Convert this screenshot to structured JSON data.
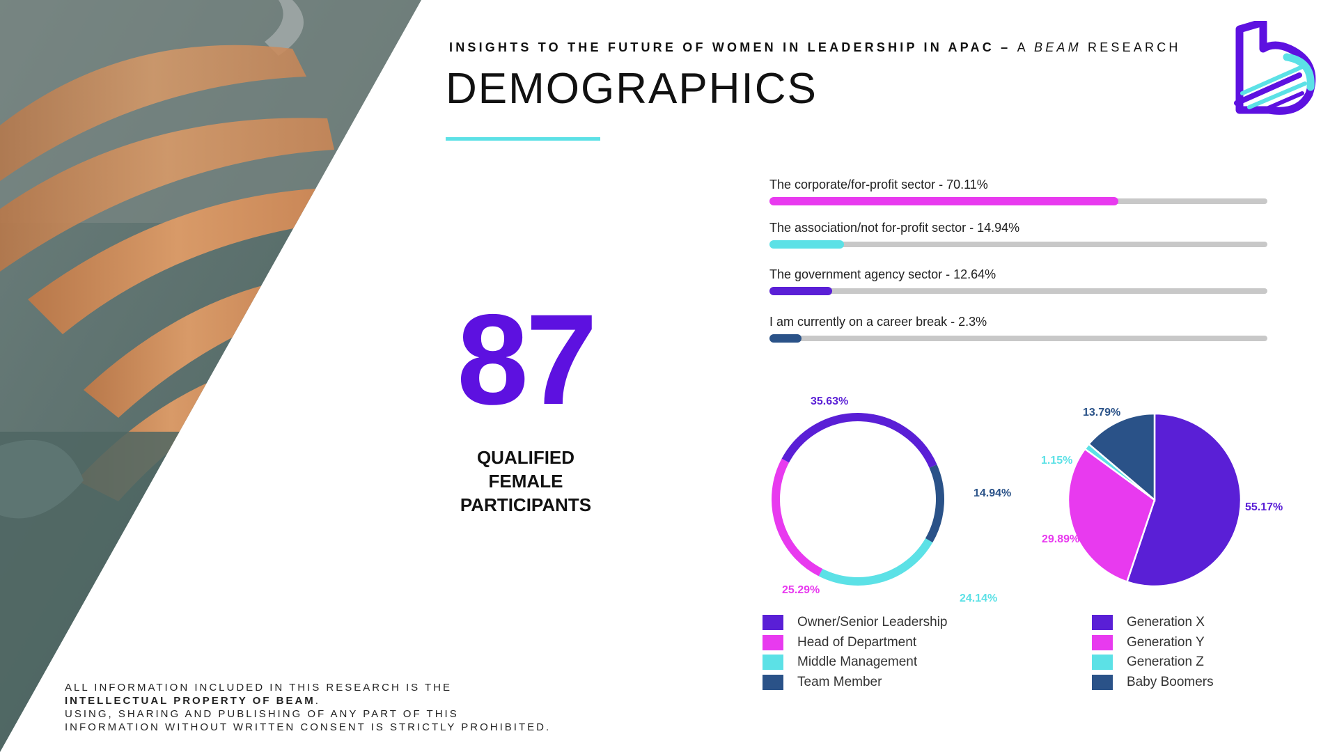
{
  "header": {
    "subtitle_main": "INSIGHTS TO THE FUTURE OF WOMEN IN LEADERSHIP IN APAC –",
    "subtitle_a": "A",
    "subtitle_beam": "BEAM",
    "subtitle_research": "RESEARCH",
    "title": "DEMOGRAPHICS"
  },
  "hero": {
    "number": "87",
    "line1": "QUALIFIED",
    "line2": "FEMALE",
    "line3": "PARTICIPANTS"
  },
  "colors": {
    "purple": "#5d11e0",
    "violet": "#5a1fd6",
    "magenta": "#e83aef",
    "cyan": "#5ce1e6",
    "navy": "#2a5288",
    "accent_line": "#5ce1e6",
    "track": "#c8c8c8"
  },
  "chart_data": [
    {
      "type": "bar",
      "orientation": "horizontal",
      "categories": [
        "The corporate/for-profit sector - 70.11%",
        "The association/not for-profit sector - 14.94%",
        "The government agency sector - 12.64%",
        "I am currently on a career break - 2.3%"
      ],
      "values": [
        70.11,
        14.94,
        12.64,
        2.3
      ],
      "colors": [
        "#e83aef",
        "#5ce1e6",
        "#5a1fd6",
        "#2a5288"
      ],
      "xlim": [
        0,
        100
      ]
    },
    {
      "type": "pie",
      "style": "donut",
      "labels": [
        "Owner/Senior Leadership",
        "Team Member",
        "Middle Management",
        "Head of Department"
      ],
      "values": [
        35.63,
        14.94,
        24.14,
        25.29
      ],
      "value_labels": [
        "35.63%",
        "14.94%",
        "24.14%",
        "25.29%"
      ],
      "colors": [
        "#5a1fd6",
        "#2a5288",
        "#5ce1e6",
        "#e83aef"
      ],
      "legend": [
        "Owner/Senior Leadership",
        "Head of Department",
        "Middle Management",
        "Team Member"
      ],
      "legend_colors": [
        "#5a1fd6",
        "#e83aef",
        "#5ce1e6",
        "#2a5288"
      ]
    },
    {
      "type": "pie",
      "labels": [
        "Generation X",
        "Generation Y",
        "Generation Z",
        "Baby Boomers"
      ],
      "values": [
        55.17,
        29.89,
        1.15,
        13.79
      ],
      "value_labels": [
        "55.17%",
        "29.89%",
        "1.15%",
        "13.79%"
      ],
      "colors": [
        "#5a1fd6",
        "#e83aef",
        "#5ce1e6",
        "#2a5288"
      ],
      "legend": [
        "Generation X",
        "Generation Y",
        "Generation Z",
        "Baby Boomers"
      ],
      "legend_colors": [
        "#5a1fd6",
        "#e83aef",
        "#5ce1e6",
        "#2a5288"
      ]
    }
  ],
  "footer": {
    "line1": "ALL INFORMATION INCLUDED IN THIS RESEARCH IS THE",
    "line2": "INTELLECTUAL PROPERTY OF BEAM",
    "line2_end": ".",
    "line3": "USING, SHARING AND PUBLISHING OF ANY PART OF THIS",
    "line4": "INFORMATION WITHOUT WRITTEN CONSENT IS STRICTLY PROHIBITED."
  }
}
